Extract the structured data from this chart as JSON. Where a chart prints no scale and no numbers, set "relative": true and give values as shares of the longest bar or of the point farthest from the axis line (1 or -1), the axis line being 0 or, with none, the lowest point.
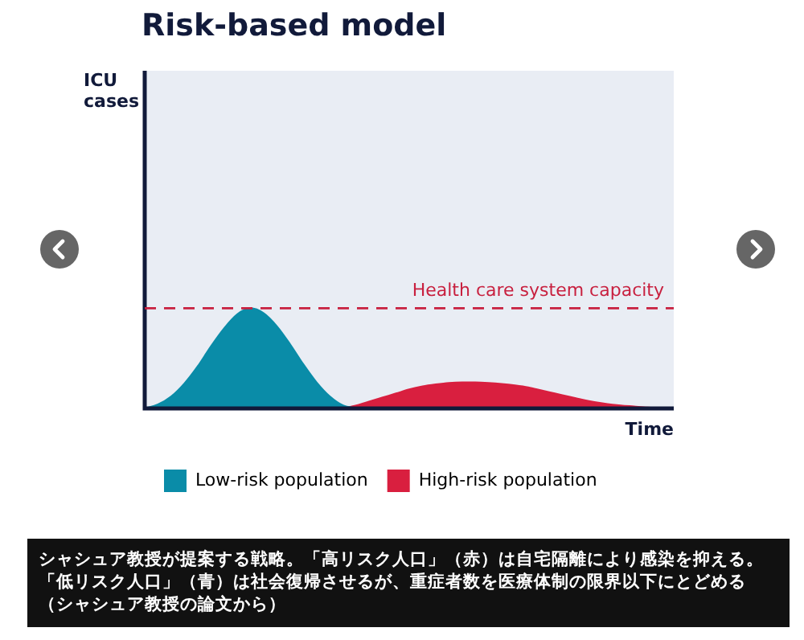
{
  "chart_data": {
    "type": "area",
    "title": "Risk-based model",
    "xlabel": "Time",
    "relative": true,
    "legend": "bottom",
    "marker": "none",
    "grid": false,
    "categories": [
      null,
      null,
      null,
      null,
      null,
      null,
      null,
      null,
      null,
      null,
      null,
      null,
      null,
      null,
      null,
      null,
      null,
      null,
      null,
      null,
      null,
      null,
      null,
      null,
      null,
      null,
      null,
      null,
      null,
      null,
      null,
      null,
      null,
      null,
      null,
      null,
      null,
      null,
      null,
      null,
      null
    ],
    "series": [
      {
        "name": "Low-risk population",
        "color": "#0a8ca8",
        "values": [
          0,
          0.04,
          0.12,
          0.25,
          0.42,
          0.62,
          0.8,
          0.94,
          1,
          0.95,
          0.82,
          0.64,
          0.44,
          0.26,
          0.12,
          0.03,
          0,
          null,
          null,
          null,
          null,
          null,
          null,
          null,
          null,
          null,
          null,
          null,
          null,
          null,
          null,
          null,
          null,
          null,
          null,
          null,
          null,
          null,
          null,
          null,
          null
        ]
      },
      {
        "name": "High-risk population",
        "color": "#d91f3f",
        "values": [
          null,
          null,
          null,
          null,
          null,
          null,
          null,
          null,
          null,
          null,
          null,
          null,
          null,
          null,
          null,
          0,
          0.03,
          0.07,
          0.11,
          0.15,
          0.19,
          0.22,
          0.24,
          0.255,
          0.26,
          0.26,
          0.255,
          0.245,
          0.23,
          0.21,
          0.18,
          0.15,
          0.12,
          0.09,
          0.065,
          0.045,
          0.03,
          0.02,
          0.01,
          0.005,
          0
        ]
      }
    ],
    "ref_lines": [
      {
        "axis": "y",
        "value": 1,
        "label": "Health care system capacity",
        "color": "#c8203f",
        "line_style": "dashed"
      }
    ],
    "annotations": [
      "ICU cases",
      "シャシュア教授が提案する戦略。「高リスク人口」（赤）は自宅隔離により感染を抑える。「低リスク人口」（青）は社会復帰させるが、重症者数を医療体制の限界以下にとどめる（シャシュア教授の論文から）"
    ]
  }
}
